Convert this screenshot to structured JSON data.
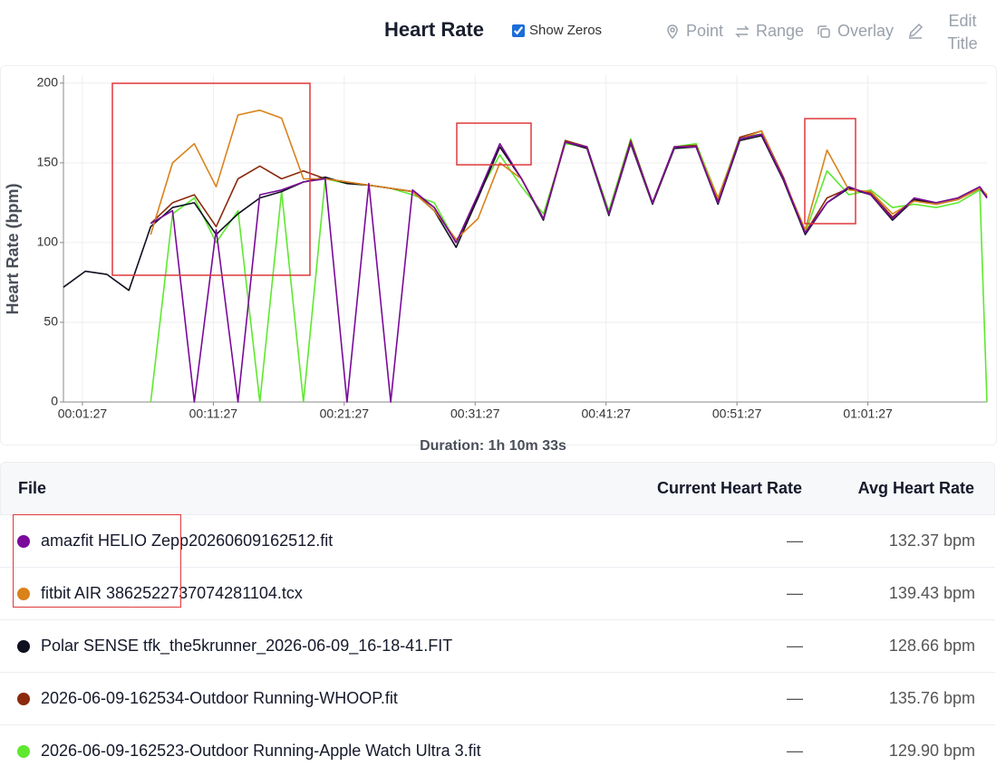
{
  "toolbar": {
    "show_zeros": "Show Zeros",
    "buttons": [
      "Point",
      "Range",
      "Overlay",
      "Edit Title"
    ]
  },
  "chart_data": {
    "type": "line",
    "title": "Heart Rate",
    "x_label": "Duration: 1h 10m 33s",
    "y_label": "Heart Rate (bpm)",
    "x": [
      0,
      100,
      200,
      300,
      400,
      500,
      600,
      700,
      800,
      900,
      1000,
      1100,
      1200,
      1300,
      1400,
      1500,
      1600,
      1700,
      1800,
      1900,
      2000,
      2100,
      2200,
      2300,
      2400,
      2500,
      2600,
      2700,
      2800,
      2900,
      3000,
      3100,
      3200,
      3300,
      3400,
      3500,
      3600,
      3700,
      3800,
      3900,
      4000,
      4100,
      4200,
      4233
    ],
    "xlim": [
      0,
      4233
    ],
    "xticks": [
      {
        "value": 87,
        "label": "00:01:27"
      },
      {
        "value": 687,
        "label": "00:11:27"
      },
      {
        "value": 1287,
        "label": "00:21:27"
      },
      {
        "value": 1887,
        "label": "00:31:27"
      },
      {
        "value": 2487,
        "label": "00:41:27"
      },
      {
        "value": 3087,
        "label": "00:51:27"
      },
      {
        "value": 3687,
        "label": "01:01:27"
      }
    ],
    "ylim": [
      0,
      205
    ],
    "yticks": [
      0,
      50,
      100,
      150,
      200
    ],
    "grid": true,
    "series": [
      {
        "name": "amazfit HELIO Zepp20260609162512.fit",
        "color": "#7a0a9a",
        "values": [
          null,
          null,
          null,
          null,
          112,
          120,
          0,
          108,
          0,
          130,
          133,
          138,
          140,
          0,
          137,
          0,
          133,
          122,
          100,
          130,
          162,
          140,
          115,
          163,
          160,
          118,
          163,
          125,
          160,
          160,
          125,
          165,
          168,
          140,
          106,
          125,
          135,
          130,
          115,
          128,
          125,
          128,
          135,
          128
        ]
      },
      {
        "name": "fitbit AIR 3862522737074281104.tcx",
        "color": "#d9821a",
        "values": [
          null,
          null,
          null,
          null,
          105,
          150,
          162,
          135,
          180,
          183,
          178,
          140,
          140,
          138,
          136,
          134,
          132,
          120,
          102,
          115,
          150,
          140,
          115,
          163,
          160,
          118,
          163,
          125,
          160,
          160,
          128,
          165,
          170,
          140,
          108,
          158,
          133,
          132,
          118,
          126,
          124,
          127,
          134,
          130
        ]
      },
      {
        "name": "Polar SENSE tfk_the5krunner_2026-06-09_16-18-41.FIT",
        "color": "#0f1020",
        "values": [
          72,
          82,
          80,
          70,
          110,
          122,
          125,
          105,
          118,
          128,
          132,
          138,
          141,
          137,
          136,
          134,
          132,
          120,
          97,
          128,
          160,
          140,
          114,
          163,
          159,
          117,
          162,
          124,
          159,
          160,
          124,
          164,
          167,
          139,
          105,
          125,
          134,
          130,
          114,
          127,
          124,
          127,
          134,
          128
        ]
      },
      {
        "name": "2026-06-09-162534-Outdoor Running-WHOOP.fit",
        "color": "#8b2a0e",
        "values": [
          null,
          null,
          null,
          null,
          112,
          125,
          130,
          110,
          140,
          148,
          140,
          145,
          140,
          138,
          136,
          134,
          132,
          122,
          100,
          128,
          160,
          140,
          115,
          164,
          160,
          118,
          164,
          125,
          160,
          161,
          126,
          166,
          170,
          141,
          106,
          128,
          134,
          131,
          116,
          127,
          125,
          128,
          135,
          129
        ]
      },
      {
        "name": "2026-06-09-162523-Outdoor Running-Apple Watch Ultra 3.fit",
        "color": "#5fe830",
        "values": [
          null,
          null,
          null,
          null,
          0,
          118,
          128,
          100,
          120,
          0,
          132,
          0,
          140,
          137,
          136,
          134,
          130,
          125,
          100,
          130,
          155,
          135,
          118,
          162,
          160,
          120,
          165,
          125,
          160,
          162,
          128,
          166,
          168,
          140,
          106,
          145,
          130,
          133,
          122,
          124,
          122,
          125,
          133,
          0
        ]
      }
    ]
  },
  "table": {
    "headers": [
      "File",
      "Current Heart Rate",
      "Avg Heart Rate"
    ],
    "rows": [
      {
        "current": "—",
        "avg": "132.37 bpm"
      },
      {
        "current": "—",
        "avg": "139.43 bpm"
      },
      {
        "current": "—",
        "avg": "128.66 bpm"
      },
      {
        "current": "—",
        "avg": "135.76 bpm"
      },
      {
        "current": "—",
        "avg": "129.90 bpm"
      }
    ]
  }
}
